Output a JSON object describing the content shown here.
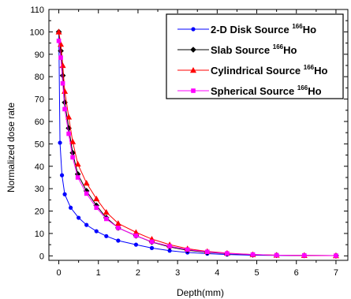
{
  "chart_data": {
    "type": "line",
    "xlabel": "Depth(mm)",
    "ylabel": "Normalized dose rate",
    "xlim": [
      -0.25,
      7.3
    ],
    "ylim": [
      -2,
      110
    ],
    "xticks": [
      0,
      1,
      2,
      3,
      4,
      5,
      6,
      7
    ],
    "yticks": [
      0,
      10,
      20,
      30,
      40,
      50,
      60,
      70,
      80,
      90,
      100,
      110
    ],
    "grid": false,
    "legend_position": "top-right",
    "series": [
      {
        "name": "2-D Disk Source",
        "name_sup": "166",
        "name_suffix": "Ho",
        "color": "#0000ff",
        "marker": "circle",
        "x": [
          0,
          0.03,
          0.08,
          0.15,
          0.3,
          0.5,
          0.7,
          0.95,
          1.2,
          1.5,
          1.95,
          2.35,
          2.8,
          3.25,
          3.75,
          4.25,
          4.9,
          5.5,
          6.2,
          7.0
        ],
        "y": [
          100,
          50.5,
          36,
          27.5,
          21.5,
          17,
          13.8,
          11,
          8.8,
          6.8,
          5,
          3.5,
          2.3,
          1.5,
          1,
          0.6,
          0.3,
          0.2,
          0.1,
          0.1
        ]
      },
      {
        "name": "Slab Source",
        "name_sup": "166",
        "name_suffix": "Ho",
        "color": "#000000",
        "marker": "diamond",
        "x": [
          0,
          0.05,
          0.1,
          0.15,
          0.25,
          0.35,
          0.48,
          0.7,
          0.95,
          1.2,
          1.5,
          1.95,
          2.35,
          2.8,
          3.25,
          3.75,
          4.25,
          4.9,
          5.5,
          6.2,
          7.0
        ],
        "y": [
          100,
          91.5,
          80.5,
          68.5,
          57,
          46,
          36.5,
          29,
          22.5,
          17,
          12.5,
          9,
          6.2,
          4,
          2.5,
          1.6,
          1,
          0.5,
          0.3,
          0.2,
          0.1
        ]
      },
      {
        "name": "Cylindrical Source",
        "name_sup": "166",
        "name_suffix": "Ho",
        "color": "#ff0000",
        "marker": "triangle",
        "x": [
          0,
          0.05,
          0.1,
          0.15,
          0.25,
          0.35,
          0.48,
          0.7,
          0.95,
          1.2,
          1.5,
          1.95,
          2.35,
          2.8,
          3.25,
          3.75,
          4.25,
          4.9,
          5.5,
          6.2,
          7.0
        ],
        "y": [
          100,
          94.5,
          85,
          73.5,
          62,
          51,
          41,
          32.5,
          25.5,
          19.5,
          14.5,
          10.5,
          7.5,
          5,
          3.2,
          2,
          1.2,
          0.6,
          0.3,
          0.2,
          0.1
        ]
      },
      {
        "name": "Spherical Source",
        "name_sup": "166",
        "name_suffix": "Ho",
        "color": "#ff00ff",
        "marker": "square",
        "x": [
          0,
          0.05,
          0.1,
          0.15,
          0.25,
          0.35,
          0.48,
          0.7,
          0.95,
          1.2,
          1.5,
          1.95,
          2.35,
          2.8,
          3.25,
          3.75,
          4.25,
          4.9,
          5.5,
          6.2,
          7.0
        ],
        "y": [
          96,
          88.5,
          77,
          65.5,
          54.5,
          44,
          35,
          27.8,
          21.5,
          16.5,
          12.5,
          9,
          6.3,
          4.3,
          2.8,
          1.8,
          1.1,
          0.6,
          0.3,
          0.2,
          0.1
        ]
      }
    ]
  }
}
